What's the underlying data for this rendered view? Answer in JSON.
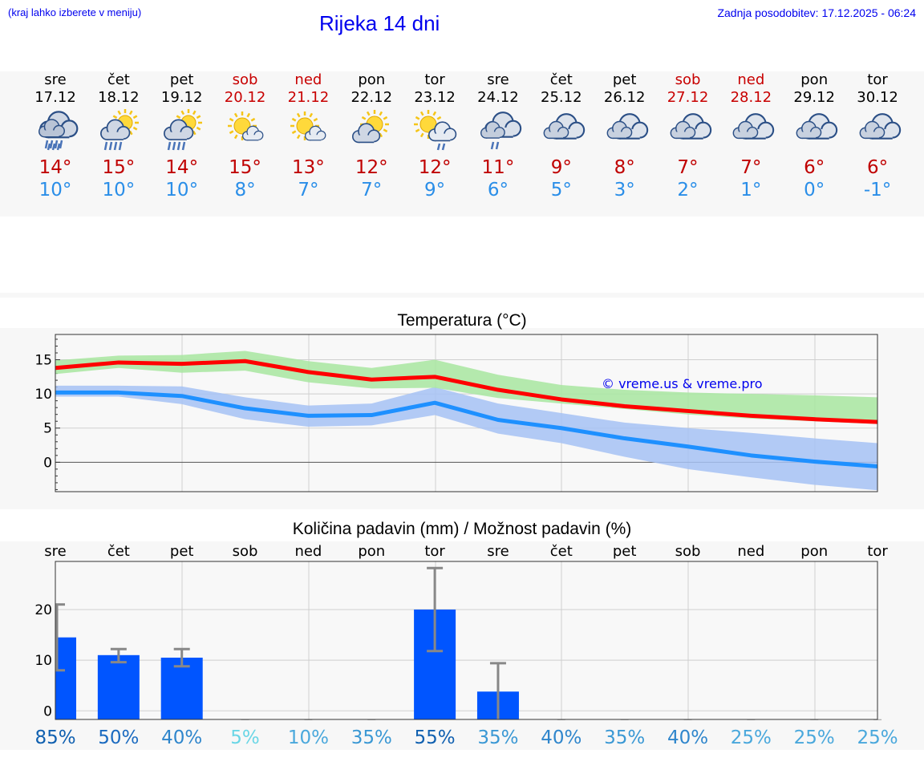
{
  "header": {
    "hint": "(kraj lahko izberete v meniju)",
    "title": "Rijeka 14 dni",
    "updated": "Zadnja posodobitev: 17.12.2025 - 06:24"
  },
  "days": [
    {
      "name": "sre",
      "date": "17.12",
      "weekend": false,
      "icon": "rain-cloud-icon",
      "tmax": "14°",
      "tmin": "10°"
    },
    {
      "name": "čet",
      "date": "18.12",
      "weekend": false,
      "icon": "sun-rain-cloud-icon",
      "tmax": "15°",
      "tmin": "10°"
    },
    {
      "name": "pet",
      "date": "19.12",
      "weekend": false,
      "icon": "sun-rain-cloud-icon",
      "tmax": "14°",
      "tmin": "10°"
    },
    {
      "name": "sob",
      "date": "20.12",
      "weekend": true,
      "icon": "sun-small-cloud-icon",
      "tmax": "15°",
      "tmin": "8°"
    },
    {
      "name": "ned",
      "date": "21.12",
      "weekend": true,
      "icon": "sun-small-cloud-icon",
      "tmax": "13°",
      "tmin": "7°"
    },
    {
      "name": "pon",
      "date": "22.12",
      "weekend": false,
      "icon": "sun-cloud-icon",
      "tmax": "12°",
      "tmin": "7°"
    },
    {
      "name": "tor",
      "date": "23.12",
      "weekend": false,
      "icon": "sun-cloud-shower-icon",
      "tmax": "12°",
      "tmin": "9°"
    },
    {
      "name": "sre",
      "date": "24.12",
      "weekend": false,
      "icon": "cloud-shower-icon",
      "tmax": "11°",
      "tmin": "6°"
    },
    {
      "name": "čet",
      "date": "25.12",
      "weekend": false,
      "icon": "cloudy-icon",
      "tmax": "9°",
      "tmin": "5°"
    },
    {
      "name": "pet",
      "date": "26.12",
      "weekend": false,
      "icon": "cloudy-icon",
      "tmax": "8°",
      "tmin": "3°"
    },
    {
      "name": "sob",
      "date": "27.12",
      "weekend": true,
      "icon": "cloudy-icon",
      "tmax": "7°",
      "tmin": "2°"
    },
    {
      "name": "ned",
      "date": "28.12",
      "weekend": true,
      "icon": "cloudy-icon",
      "tmax": "7°",
      "tmin": "1°"
    },
    {
      "name": "pon",
      "date": "29.12",
      "weekend": false,
      "icon": "cloudy-icon",
      "tmax": "6°",
      "tmin": "0°"
    },
    {
      "name": "tor",
      "date": "30.12",
      "weekend": false,
      "icon": "cloudy-icon",
      "tmax": "6°",
      "tmin": "-1°"
    }
  ],
  "colors": {
    "max_line": "#ff0000",
    "min_line": "#1e90ff",
    "max_band": "#a8e6a0",
    "min_band": "#a6c2f5",
    "bar": "#0055ff",
    "error": "#888888",
    "weekend": "#c80000",
    "link": "#0000ee"
  },
  "chart_data": [
    {
      "type": "line",
      "title": "Temperatura (°C)",
      "watermark": "© vreme.us & vreme.pro",
      "x": [
        "17.12",
        "18.12",
        "19.12",
        "20.12",
        "21.12",
        "22.12",
        "23.12",
        "24.12",
        "25.12",
        "26.12",
        "27.12",
        "28.12",
        "29.12",
        "30.12"
      ],
      "yticks": [
        0,
        5,
        10,
        15
      ],
      "ylim": [
        -4.3,
        18.7
      ],
      "series": [
        {
          "name": "max",
          "values": [
            13.8,
            14.6,
            14.4,
            14.8,
            13.2,
            12.1,
            12.5,
            10.6,
            9.2,
            8.2,
            7.5,
            6.8,
            6.3,
            5.9
          ],
          "band_low": [
            12.9,
            13.8,
            13.1,
            13.4,
            11.7,
            10.8,
            10.9,
            9.4,
            8.6,
            7.8,
            7.0,
            6.4,
            6.0,
            5.6
          ],
          "band_high": [
            14.9,
            15.6,
            15.7,
            16.3,
            14.8,
            13.8,
            15.0,
            12.8,
            11.3,
            10.6,
            10.2,
            10.0,
            9.8,
            9.5
          ]
        },
        {
          "name": "min",
          "values": [
            10.2,
            10.2,
            9.7,
            7.9,
            6.8,
            6.9,
            8.7,
            6.2,
            5.0,
            3.5,
            2.3,
            1.0,
            0.1,
            -0.6
          ],
          "band_low": [
            9.6,
            9.6,
            8.5,
            6.3,
            5.2,
            5.4,
            6.9,
            4.2,
            2.8,
            0.8,
            -1.0,
            -2.2,
            -3.3,
            -4.1
          ],
          "band_high": [
            11.2,
            11.2,
            11.1,
            9.5,
            8.3,
            8.6,
            11.0,
            8.6,
            7.2,
            5.8,
            5.0,
            4.3,
            3.5,
            2.8
          ]
        }
      ]
    },
    {
      "type": "bar",
      "title": "Količina padavin (mm) / Možnost padavin (%)",
      "categories": [
        "sre",
        "čet",
        "pet",
        "sob",
        "ned",
        "pon",
        "tor",
        "sre",
        "čet",
        "pet",
        "sob",
        "ned",
        "pon",
        "tor"
      ],
      "yticks": [
        0,
        10,
        20
      ],
      "ylim": [
        -1.7,
        29.5
      ],
      "values": [
        14.5,
        11.0,
        10.5,
        0,
        0,
        0,
        20.0,
        3.8,
        0,
        0,
        0,
        0,
        0,
        0
      ],
      "err_low": [
        8,
        9.6,
        8.8,
        0,
        0,
        0,
        11.8,
        0,
        0,
        0,
        0,
        0,
        0,
        0
      ],
      "err_high": [
        21,
        12.2,
        12.2,
        0,
        0,
        0,
        28.2,
        9.4,
        0,
        0,
        0,
        0,
        0,
        0
      ],
      "probability": [
        "85%",
        "50%",
        "40%",
        "5%",
        "10%",
        "35%",
        "55%",
        "35%",
        "40%",
        "35%",
        "40%",
        "25%",
        "25%",
        "25%"
      ],
      "probability_colors": [
        "#1060b0",
        "#1a6ac0",
        "#2f86cc",
        "#6ad6e6",
        "#4aa8dc",
        "#3a98d4",
        "#1060b0",
        "#3a98d4",
        "#2f86cc",
        "#3a98d4",
        "#2f86cc",
        "#4aa8dc",
        "#4aa8dc",
        "#4aa8dc"
      ]
    }
  ]
}
